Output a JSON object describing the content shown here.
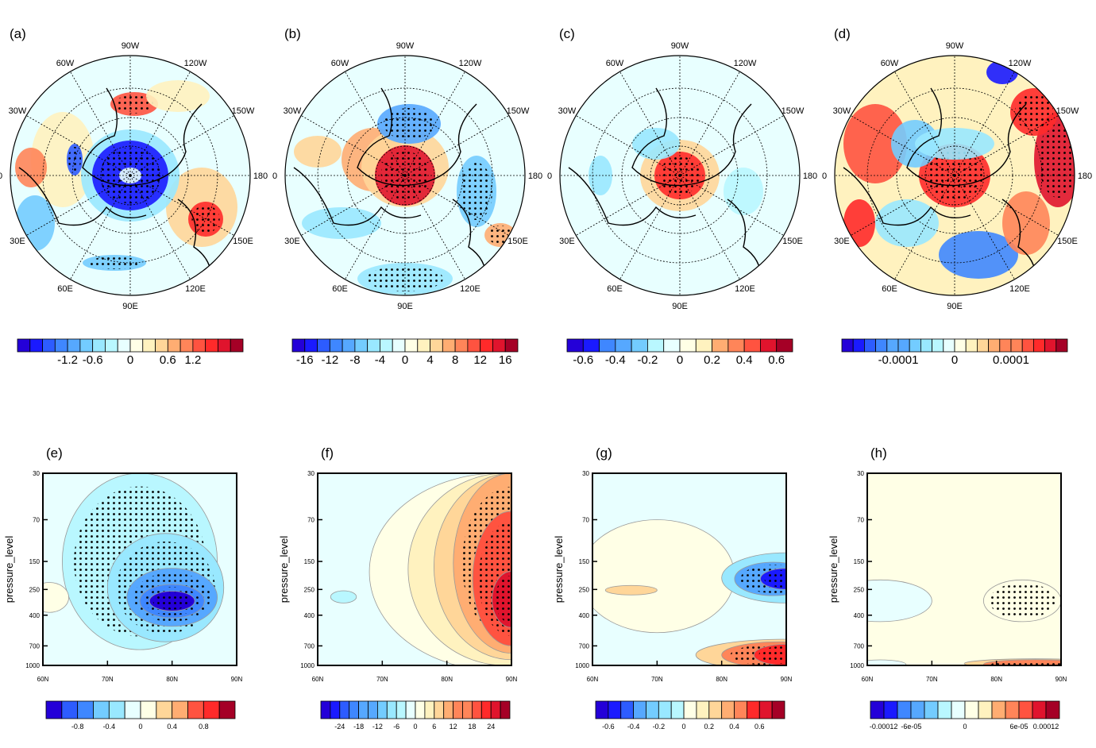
{
  "palette": [
    "#2400d8",
    "#1a1aff",
    "#2d5cff",
    "#3f87ff",
    "#56a8ff",
    "#73ccff",
    "#99e8ff",
    "#b9f7ff",
    "#e8ffff",
    "#ffffe6",
    "#fff2bf",
    "#ffd699",
    "#ffad72",
    "#ff8559",
    "#ff5340",
    "#ff2a2a",
    "#e0142d",
    "#a50026"
  ],
  "map_panels": [
    {
      "label": "(a)",
      "colorbar": {
        "n_boxes": 18,
        "labels": [
          "-1.2",
          "-0.6",
          "0",
          "0.6",
          "1.2"
        ],
        "label_boundaries": [
          4,
          6,
          9,
          12,
          14
        ]
      }
    },
    {
      "label": "(b)",
      "colorbar": {
        "n_boxes": 18,
        "labels": [
          "-16",
          "-12",
          "-8",
          "-4",
          "0",
          "4",
          "8",
          "12",
          "16"
        ],
        "label_boundaries": [
          1,
          3,
          5,
          7,
          9,
          11,
          13,
          15,
          17
        ]
      }
    },
    {
      "label": "(c)",
      "colorbar": {
        "n_boxes": 14,
        "labels": [
          "-0.6",
          "-0.4",
          "-0.2",
          "0",
          "0.2",
          "0.4",
          "0.6"
        ],
        "label_boundaries": [
          1,
          3,
          5,
          7,
          9,
          11,
          13
        ]
      }
    },
    {
      "label": "(d)",
      "colorbar": {
        "n_boxes": 20,
        "labels": [
          "-0.0001",
          "0",
          "0.0001"
        ],
        "label_boundaries": [
          5,
          10,
          15
        ]
      }
    }
  ],
  "lon_labels": [
    "90W",
    "120W",
    "150W",
    "180",
    "150E",
    "120E",
    "90E",
    "60E",
    "30E",
    "0",
    "30W",
    "60W"
  ],
  "section_panels": [
    {
      "label": "(e)",
      "colorbar": {
        "n_boxes": 12,
        "labels": [
          "-0.8",
          "-0.4",
          "0",
          "0.4",
          "0.8"
        ],
        "label_boundaries": [
          2,
          4,
          6,
          8,
          10
        ]
      }
    },
    {
      "label": "(f)",
      "colorbar": {
        "n_boxes": 20,
        "labels": [
          "-24",
          "-18",
          "-12",
          "-6",
          "0",
          "6",
          "12",
          "18",
          "24"
        ],
        "label_boundaries": [
          2,
          4,
          6,
          8,
          10,
          12,
          14,
          16,
          18
        ]
      }
    },
    {
      "label": "(g)",
      "colorbar": {
        "n_boxes": 15,
        "labels": [
          "-0.6",
          "-0.4",
          "-0.2",
          "0",
          "0.2",
          "0.4",
          "0.6"
        ],
        "label_boundaries": [
          1,
          3,
          5,
          7,
          9,
          11,
          13
        ]
      }
    },
    {
      "label": "(h)",
      "colorbar": {
        "n_boxes": 14,
        "labels": [
          "-0.00012",
          "-6e-05",
          "0",
          "6e-05",
          "0.00012"
        ],
        "label_boundaries": [
          1,
          3,
          7,
          11,
          13
        ]
      }
    }
  ],
  "chart_data": {
    "type": "heatmap",
    "section_axes": {
      "ylabel": "pressure_level",
      "y_scale": "log",
      "y_ticks": [
        30,
        70,
        150,
        250,
        400,
        700,
        1000
      ],
      "y_tick_labels": [
        "30",
        "70",
        "150",
        "250",
        "400",
        "700",
        "1000"
      ],
      "x_ticks": [
        60,
        70,
        80,
        90
      ],
      "x_tick_labels": [
        "60N",
        "70N",
        "80N",
        "90N"
      ],
      "xlim": [
        60,
        90
      ],
      "ylim": [
        1000,
        30
      ]
    },
    "map_projection": "north polar stereographic",
    "stippling": "significant regions marked with dots"
  }
}
